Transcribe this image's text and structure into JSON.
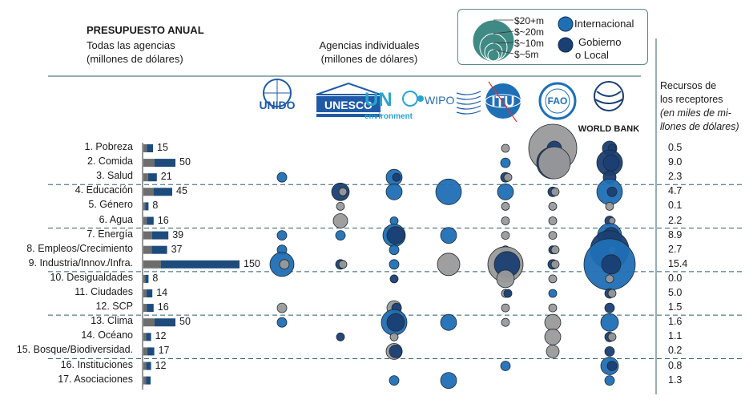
{
  "header": {
    "title": "PRESUPUESTO ANUAL",
    "subtitle_line1": "Todas las agencias",
    "subtitle_line2": "(millones de dólares)",
    "individual_line1": "Agencias individuales",
    "individual_line2": "(millones de dólares)",
    "recursos_line1": "Recursos de",
    "recursos_line2": "los receptores",
    "recursos_line3": "(en miles de mi-",
    "recursos_line4": "llones de dólares)"
  },
  "legend": {
    "size_labels": [
      "$20+m",
      "$~20m",
      "$~10m",
      "$~5m"
    ],
    "international": "Internacional",
    "gobierno_line1": "Gobierno",
    "gobierno_line2": "o Local"
  },
  "agencies": [
    {
      "name": "UNIDO",
      "text": "UNIDO"
    },
    {
      "name": "UNESCO",
      "text": "UNESCO"
    },
    {
      "name": "UN environment",
      "text": "UN",
      "sub": "environment"
    },
    {
      "name": "WIPO",
      "text": "WIPO"
    },
    {
      "name": "ITU",
      "text": "ITU"
    },
    {
      "name": "FAO",
      "text": "FAO"
    },
    {
      "name": "WORLD BANK",
      "text": "WORLD BANK"
    }
  ],
  "colors": {
    "international": "#1f6fb5",
    "government": "#1a3f73",
    "gray": "#9a9a9a",
    "legend_teal": "#3f8a85",
    "bar_dark": "#1d4c7c",
    "bar_gray": "#6d6d6d"
  },
  "chart_data": {
    "type": "bar",
    "categories": [
      "1. Pobreza",
      "2. Comida",
      "3. Salud",
      "4. Educación",
      "5. Género",
      "6. Agua",
      "7. Energía",
      "8. Empleos/Crecimiento",
      "9. Industria/Innov./Infra.",
      "10. Desigualdades",
      "11. Ciudades",
      "12. SCP",
      "13. Clima",
      "14. Océano",
      "15. Bosque/Biodiversidad.",
      "16. Instituciones",
      "17. Asociaciones"
    ],
    "values": [
      15,
      50,
      21,
      45,
      8,
      16,
      39,
      37,
      150,
      8,
      14,
      16,
      50,
      12,
      17,
      12,
      null
    ],
    "value_labels": [
      "15",
      "50",
      "21",
      "45",
      "8",
      "16",
      "39",
      "37",
      "150",
      "8",
      "14",
      "16",
      "50",
      "12",
      "17",
      "12",
      ""
    ],
    "recursos": [
      "0.5",
      "9.0",
      "2.3",
      "4.7",
      "0.1",
      "2.2",
      "8.9",
      "2.7",
      "15.4",
      "0.0",
      "5.0",
      "1.5",
      "1.6",
      "1.1",
      "0.2",
      "0.8",
      "1.3"
    ],
    "bubbles": [
      [
        [],
        [],
        [],
        [],
        [
          [
            "g",
            5
          ]
        ],
        [
          [
            "g",
            30
          ],
          [
            "d",
            9
          ]
        ],
        [
          [
            "d",
            9
          ],
          [
            "d",
            5
          ]
        ]
      ],
      [
        [],
        [],
        [],
        [],
        [
          [
            "i",
            6
          ]
        ],
        [
          [
            "d",
            20
          ],
          [
            "g",
            20
          ]
        ],
        [
          [
            "d",
            16
          ],
          [
            "d",
            10
          ]
        ]
      ],
      [
        [
          [
            "i",
            6
          ]
        ],
        [],
        [
          [
            "i",
            10
          ],
          [
            "d",
            5
          ]
        ],
        [],
        [
          [
            "d",
            6
          ],
          [
            "g",
            5
          ]
        ],
        [],
        [
          [
            "d",
            8
          ]
        ]
      ],
      [
        [],
        [
          [
            "d",
            11
          ],
          [
            "g",
            5
          ]
        ],
        [
          [
            "i",
            10
          ]
        ],
        [
          [
            "i",
            16
          ]
        ],
        [
          [
            "i",
            10
          ]
        ],
        [
          [
            "d",
            6
          ],
          [
            "g",
            5
          ]
        ],
        [
          [
            "i",
            16
          ],
          [
            "d",
            6
          ]
        ]
      ],
      [
        [],
        [
          [
            "g",
            5
          ]
        ],
        [],
        [],
        [
          [
            "g",
            5
          ]
        ],
        [
          [
            "g",
            5
          ]
        ],
        [
          [
            "g",
            5
          ]
        ]
      ],
      [
        [],
        [
          [
            "g",
            9
          ]
        ],
        [
          [
            "i",
            5
          ]
        ],
        [],
        [
          [
            "g",
            5
          ]
        ],
        [
          [
            "g",
            5
          ]
        ],
        [
          [
            "d",
            6
          ],
          [
            "g",
            4
          ]
        ]
      ],
      [
        [
          [
            "i",
            6
          ]
        ],
        [
          [
            "i",
            6
          ]
        ],
        [
          [
            "i",
            14
          ],
          [
            "d",
            11
          ]
        ],
        [
          [
            "i",
            10
          ]
        ],
        [
          [
            "g",
            5
          ]
        ],
        [
          [
            "g",
            5
          ]
        ],
        [
          [
            "i",
            15
          ],
          [
            "d",
            10
          ]
        ]
      ],
      [
        [
          [
            "i",
            6
          ]
        ],
        [],
        [
          [
            "i",
            6
          ]
        ],
        [],
        [
          [
            "g",
            5
          ]
        ],
        [
          [
            "d",
            5
          ],
          [
            "g",
            5
          ]
        ],
        [
          [
            "d",
            24
          ],
          [
            "g",
            5
          ]
        ]
      ],
      [
        [
          [
            "i",
            15
          ],
          [
            "g",
            6
          ]
        ],
        [
          [
            "d",
            6
          ],
          [
            "g",
            5
          ]
        ],
        [
          [
            "i",
            6
          ]
        ],
        [
          [
            "g",
            14
          ]
        ],
        [
          [
            "g",
            22
          ],
          [
            "d",
            16
          ]
        ],
        [
          [
            "d",
            6
          ],
          [
            "g",
            5
          ]
        ],
        [
          [
            "i",
            32
          ],
          [
            "d",
            12
          ]
        ]
      ],
      [
        [],
        [],
        [
          [
            "d",
            5
          ]
        ],
        [],
        [
          [
            "g",
            11
          ]
        ],
        [
          [
            "g",
            5
          ]
        ],
        [
          [
            "g",
            5
          ]
        ]
      ],
      [
        [],
        [],
        [],
        [],
        [
          [
            "g",
            5
          ],
          [
            "d",
            5
          ]
        ],
        [
          [
            "i",
            5
          ]
        ],
        [
          [
            "d",
            6
          ],
          [
            "g",
            5
          ]
        ]
      ],
      [
        [
          [
            "g",
            6
          ]
        ],
        [],
        [
          [
            "g",
            9
          ],
          [
            "d",
            6
          ]
        ],
        [],
        [
          [
            "g",
            5
          ]
        ],
        [
          [
            "g",
            5
          ]
        ],
        [
          [
            "d",
            6
          ]
        ]
      ],
      [
        [
          [
            "i",
            6
          ]
        ],
        [],
        [
          [
            "i",
            16
          ],
          [
            "d",
            11
          ]
        ],
        [
          [
            "i",
            10
          ]
        ],
        [
          [
            "g",
            5
          ]
        ],
        [
          [
            "g",
            10
          ]
        ],
        [
          [
            "i",
            11
          ]
        ]
      ],
      [
        [],
        [
          [
            "d",
            5
          ]
        ],
        [
          [
            "g",
            5
          ]
        ],
        [],
        [],
        [
          [
            "g",
            10
          ]
        ],
        [
          [
            "d",
            6
          ],
          [
            "g",
            5
          ]
        ]
      ],
      [
        [],
        [],
        [
          [
            "g",
            10
          ],
          [
            "d",
            8
          ]
        ],
        [],
        [],
        [
          [
            "g",
            8
          ]
        ],
        [
          [
            "d",
            6
          ]
        ]
      ],
      [
        [],
        [],
        [],
        [],
        [
          [
            "i",
            6
          ]
        ],
        [],
        [
          [
            "i",
            11
          ],
          [
            "d",
            6
          ]
        ]
      ],
      [
        [],
        [],
        [
          [
            "i",
            6
          ]
        ],
        [
          [
            "i",
            10
          ]
        ],
        [],
        [],
        [
          [
            "i",
            6
          ]
        ]
      ]
    ]
  }
}
